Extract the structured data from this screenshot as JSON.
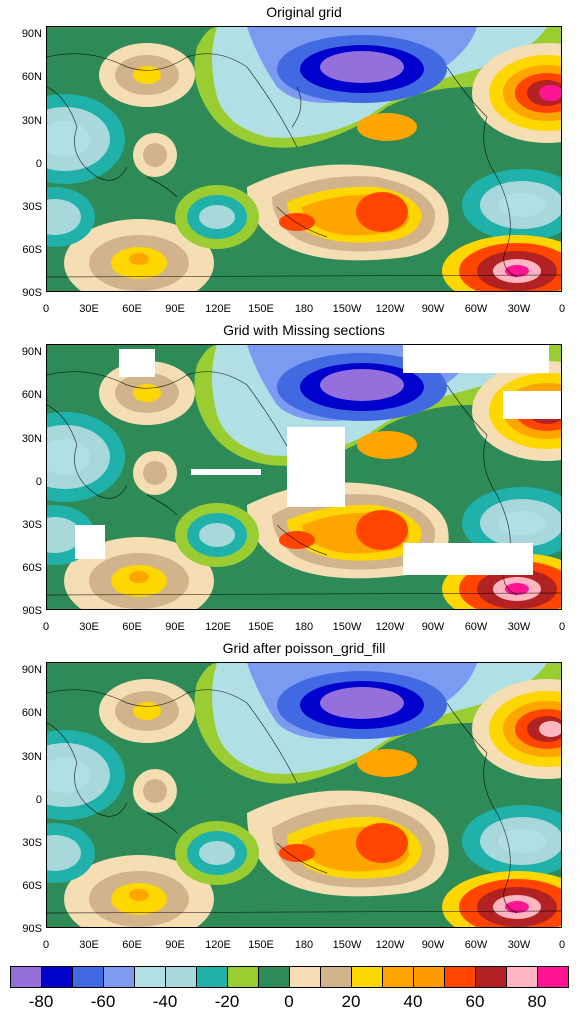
{
  "panels": [
    {
      "title": "Original grid"
    },
    {
      "title": "Grid with Missing sections"
    },
    {
      "title": "Grid after poisson_grid_fill"
    }
  ],
  "axes": {
    "lat_ticks": [
      "90N",
      "60N",
      "30N",
      "0",
      "30S",
      "60S",
      "90S"
    ],
    "lon_ticks": [
      "0",
      "30E",
      "60E",
      "90E",
      "120E",
      "150E",
      "180",
      "150W",
      "120W",
      "90W",
      "60W",
      "30W",
      "0"
    ]
  },
  "legend": {
    "colors": [
      "#9370db",
      "#0000cd",
      "#4169e1",
      "#7b9af0",
      "#b0e0e6",
      "#a8d8dc",
      "#20b2aa",
      "#9acd32",
      "#2e8b57",
      "#f5deb3",
      "#d2b48c",
      "#ffd700",
      "#ffa500",
      "#ff9a00",
      "#ff4500",
      "#b22222",
      "#ffb6c1",
      "#ff1493"
    ],
    "labels": [
      "-80",
      "-60",
      "-40",
      "-20",
      "0",
      "20",
      "40",
      "60",
      "80"
    ]
  },
  "land_color": "#2e8b57"
}
